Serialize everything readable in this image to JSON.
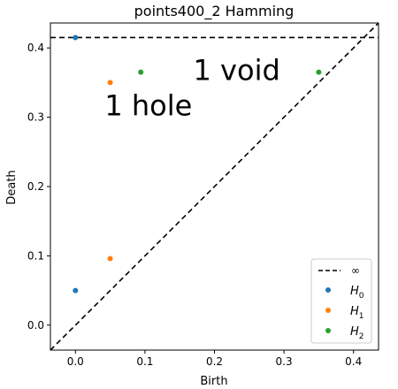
{
  "chart_data": {
    "type": "scatter",
    "title": "points400_2 Hamming",
    "xlabel": "Birth",
    "ylabel": "Death",
    "xlim": [
      -0.036,
      0.436
    ],
    "ylim": [
      -0.036,
      0.436
    ],
    "xticks": [
      "0.0",
      "0.1",
      "0.2",
      "0.3",
      "0.4"
    ],
    "yticks": [
      "0.0",
      "0.1",
      "0.2",
      "0.3",
      "0.4"
    ],
    "grid": false,
    "legend_position": "lower-right",
    "infinity_death": 0.415,
    "infinity_label": "∞",
    "series": [
      {
        "name": "H0",
        "label_main": "H",
        "label_sub": "0",
        "color": "#1f77b4",
        "points": [
          [
            0.0,
            0.415
          ],
          [
            0.0,
            0.05
          ]
        ]
      },
      {
        "name": "H1",
        "label_main": "H",
        "label_sub": "1",
        "color": "#ff7f0e",
        "points": [
          [
            0.05,
            0.35
          ],
          [
            0.05,
            0.096
          ]
        ]
      },
      {
        "name": "H2",
        "label_main": "H",
        "label_sub": "2",
        "color": "#2ca02c",
        "points": [
          [
            0.094,
            0.365
          ],
          [
            0.35,
            0.365
          ]
        ]
      }
    ],
    "annotations": [
      {
        "text": "1 hole",
        "x": 0.105,
        "y": 0.303
      },
      {
        "text": "1 void",
        "x": 0.232,
        "y": 0.354
      }
    ]
  }
}
